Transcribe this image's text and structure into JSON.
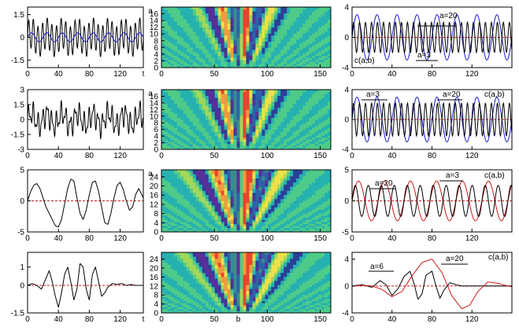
{
  "figure": {
    "row_count": 4,
    "col_count": 3
  },
  "chart_data": [
    {
      "row": 1,
      "column": 1,
      "type": "line",
      "xlabel": "t",
      "xlim": [
        0,
        150
      ],
      "ylim": [
        -2,
        2
      ],
      "xticks": [
        "0",
        "40",
        "80",
        "120"
      ],
      "yticks": [
        "1.5",
        "0",
        "-1.5"
      ],
      "ytick_values": [
        1.5,
        0,
        -1.5
      ],
      "zero_line": false,
      "series": [
        {
          "color": "#000000",
          "components": [
            {
              "amp": 0.3,
              "period": 20
            },
            {
              "amp": 1.0,
              "period": 6
            }
          ]
        },
        {
          "color": "#1a1acc",
          "components": [
            {
              "amp": 0.3,
              "period": 20
            }
          ]
        }
      ]
    },
    {
      "row": 1,
      "column": 2,
      "type": "heatmap",
      "ylabel": "a",
      "xlim": [
        0,
        160
      ],
      "ylim": [
        0,
        18
      ],
      "xticks": [
        "0",
        "50",
        "100",
        "150"
      ],
      "xtick_values": [
        0,
        50,
        100,
        150
      ],
      "yticks": [
        "0",
        "2",
        "4",
        "6",
        "8",
        "10",
        "12",
        "14",
        "16"
      ],
      "ytick_values": [
        0,
        2,
        4,
        6,
        8,
        10,
        12,
        14,
        16
      ],
      "pattern": "vertical bands with period 20 in b, strong narrow band at a=3 with short period",
      "colormap": [
        "#3a8c8c",
        "#2e62aa",
        "#5a2e9a",
        "#2c3f98",
        "#26b1b1",
        "#4ecb88",
        "#a2d85a",
        "#efe048",
        "#f19a3c",
        "#e8442e"
      ]
    },
    {
      "row": 1,
      "column": 3,
      "type": "line",
      "xlim": [
        0,
        160
      ],
      "ylim": [
        -4,
        4
      ],
      "xticks": [
        "0",
        "40",
        "80",
        "120"
      ],
      "yticks": [
        "4",
        "0",
        "-4"
      ],
      "ytick_values": [
        4,
        0,
        -4
      ],
      "zero_line": true,
      "series": [
        {
          "label": "a=20",
          "color": "#1a1acc",
          "components": [
            {
              "amp": 3.0,
              "period": 20
            }
          ]
        },
        {
          "label": "a=3",
          "color": "#000000",
          "components": [
            {
              "amp": 2.0,
              "period": 6
            }
          ]
        }
      ],
      "annotations": [
        "a=20",
        "a=3",
        "c(a,b)"
      ]
    },
    {
      "row": 2,
      "column": 1,
      "type": "line",
      "xlim": [
        0,
        150
      ],
      "ylim": [
        -3,
        3
      ],
      "xticks": [
        "0",
        "40",
        "80",
        "120"
      ],
      "yticks": [
        "3",
        "1.5",
        "0",
        "-1.5",
        "-3"
      ],
      "ytick_values": [
        3,
        1.5,
        0,
        -1.5,
        -3
      ],
      "zero_line": false,
      "series": [
        {
          "color": "#000000",
          "components": [
            {
              "amp": 0.6,
              "period": 20
            },
            {
              "amp": 0.9,
              "period": 6
            },
            {
              "amp": 0.5,
              "period": 3.3
            }
          ]
        }
      ]
    },
    {
      "row": 2,
      "column": 2,
      "type": "heatmap",
      "ylabel": "a",
      "xlim": [
        0,
        160
      ],
      "ylim": [
        0,
        18
      ],
      "xticks": [
        "0",
        "50",
        "100",
        "150"
      ],
      "xtick_values": [
        0,
        50,
        100,
        150
      ],
      "yticks": [
        "0",
        "2",
        "4",
        "6",
        "8",
        "10",
        "12",
        "14",
        "16"
      ],
      "ytick_values": [
        0,
        2,
        4,
        6,
        8,
        10,
        12,
        14,
        16
      ],
      "pattern": "vertical bands with period 20 in b plus noisy structure at small a",
      "colormap": [
        "#3a8c8c",
        "#2e62aa",
        "#5a2e9a",
        "#2c3f98",
        "#26b1b1",
        "#4ecb88",
        "#a2d85a",
        "#efe048",
        "#f19a3c",
        "#e8442e"
      ]
    },
    {
      "row": 2,
      "column": 3,
      "type": "line",
      "xlim": [
        0,
        160
      ],
      "ylim": [
        -4,
        4
      ],
      "xticks": [
        "0",
        "40",
        "80",
        "120"
      ],
      "yticks": [
        "4",
        "0",
        "-4"
      ],
      "ytick_values": [
        4,
        0,
        -4
      ],
      "zero_line": true,
      "series": [
        {
          "label": "a=20",
          "color": "#1a1acc",
          "components": [
            {
              "amp": 3.0,
              "period": 20
            }
          ]
        },
        {
          "label": "a=3",
          "color": "#000000",
          "components": [
            {
              "amp": 2.2,
              "period": 6
            }
          ]
        }
      ],
      "annotations": [
        "a=3",
        "a=20",
        "c(a,b)"
      ]
    },
    {
      "row": 3,
      "column": 1,
      "type": "line",
      "xlim": [
        0,
        150
      ],
      "ylim": [
        -5,
        5
      ],
      "xticks": [
        "0",
        "40",
        "80",
        "120"
      ],
      "yticks": [
        "5",
        "0",
        "-5"
      ],
      "ytick_values": [
        5,
        0,
        -5
      ],
      "zero_line": true,
      "series": [
        {
          "color": "#000000",
          "points": [
            [
              0,
              0
            ],
            [
              4,
              1.5
            ],
            [
              8,
              2.5
            ],
            [
              12,
              2.8
            ],
            [
              16,
              2.0
            ],
            [
              20,
              0.5
            ],
            [
              24,
              -1.0
            ],
            [
              28,
              -2.0
            ],
            [
              32,
              -3.0
            ],
            [
              36,
              -4.0
            ],
            [
              40,
              -4.2
            ],
            [
              44,
              -3.0
            ],
            [
              48,
              -0.5
            ],
            [
              52,
              2.0
            ],
            [
              56,
              3.5
            ],
            [
              60,
              3.2
            ],
            [
              64,
              0.5
            ],
            [
              68,
              -2.0
            ],
            [
              72,
              -3.0
            ],
            [
              76,
              -1.5
            ],
            [
              80,
              1.0
            ],
            [
              84,
              3.0
            ],
            [
              88,
              3.2
            ],
            [
              92,
              1.5
            ],
            [
              96,
              -1.0
            ],
            [
              100,
              -3.5
            ],
            [
              104,
              -3.8
            ],
            [
              108,
              -2.0
            ],
            [
              112,
              0.5
            ],
            [
              116,
              2.5
            ],
            [
              120,
              3.0
            ],
            [
              124,
              1.8
            ],
            [
              128,
              0
            ],
            [
              132,
              -1.5
            ],
            [
              136,
              -1.0
            ],
            [
              140,
              1.0
            ],
            [
              144,
              2.0
            ],
            [
              148,
              1.0
            ],
            [
              150,
              0.5
            ]
          ]
        }
      ]
    },
    {
      "row": 3,
      "column": 2,
      "type": "heatmap",
      "ylabel": "a",
      "xlim": [
        0,
        160
      ],
      "ylim": [
        0,
        27
      ],
      "xticks": [
        "0",
        "50",
        "100",
        "150"
      ],
      "xtick_values": [
        0,
        50,
        100,
        150
      ],
      "yticks": [
        "0",
        "4",
        "8",
        "12",
        "16",
        "20",
        "24"
      ],
      "ytick_values": [
        0,
        4,
        8,
        12,
        16,
        20,
        24
      ],
      "pattern": "oscillating blobs along b with period near 20, smaller scale structure near b=70-90",
      "colormap": [
        "#3a8c8c",
        "#2e62aa",
        "#5a2e9a",
        "#2c3f98",
        "#26b1b1",
        "#4ecb88",
        "#a2d85a",
        "#efe048",
        "#f19a3c",
        "#e8442e"
      ]
    },
    {
      "row": 3,
      "column": 3,
      "type": "line",
      "xlim": [
        0,
        160
      ],
      "ylim": [
        -5,
        5
      ],
      "xticks": [
        "0",
        "40",
        "80",
        "120"
      ],
      "yticks": [
        "5",
        "0",
        "-5"
      ],
      "ytick_values": [
        5,
        0,
        -5
      ],
      "zero_line": true,
      "series": [
        {
          "label": "a=20",
          "color": "#cc1a1a",
          "components": [
            {
              "amp": 3.2,
              "period": 26
            }
          ]
        },
        {
          "label": "a=3",
          "color": "#000000",
          "components": [
            {
              "amp": 2.5,
              "period": 13
            }
          ]
        }
      ],
      "annotations": [
        "a=20",
        "a=3",
        "c(a,b)"
      ]
    },
    {
      "row": 4,
      "column": 1,
      "type": "line",
      "xlabel": "t",
      "xlim": [
        0,
        150
      ],
      "ylim": [
        -1.5,
        1.8
      ],
      "xticks": [
        "0",
        "40",
        "80",
        "120"
      ],
      "yticks": [
        "1",
        "0",
        "-1.5"
      ],
      "ytick_values": [
        1,
        0,
        -1.5
      ],
      "zero_line": true,
      "series": [
        {
          "color": "#000000",
          "points": [
            [
              0,
              0
            ],
            [
              6,
              0.1
            ],
            [
              12,
              0
            ],
            [
              18,
              -0.2
            ],
            [
              24,
              0.4
            ],
            [
              28,
              0.8
            ],
            [
              32,
              0.2
            ],
            [
              36,
              -0.6
            ],
            [
              40,
              -1.2
            ],
            [
              44,
              -0.4
            ],
            [
              48,
              0.6
            ],
            [
              52,
              1.0
            ],
            [
              56,
              0.2
            ],
            [
              60,
              -0.8
            ],
            [
              64,
              -0.2
            ],
            [
              68,
              1.2
            ],
            [
              72,
              1.0
            ],
            [
              76,
              -0.2
            ],
            [
              80,
              -0.8
            ],
            [
              84,
              0.6
            ],
            [
              88,
              1.0
            ],
            [
              92,
              0.2
            ],
            [
              96,
              -0.6
            ],
            [
              100,
              -0.4
            ],
            [
              104,
              -0.1
            ],
            [
              110,
              0.1
            ],
            [
              116,
              0.05
            ],
            [
              122,
              0.1
            ],
            [
              128,
              0
            ],
            [
              134,
              0.05
            ],
            [
              140,
              0
            ],
            [
              150,
              0
            ]
          ]
        }
      ]
    },
    {
      "row": 4,
      "column": 2,
      "type": "heatmap",
      "xlabel": "b",
      "xlim": [
        0,
        160
      ],
      "ylim": [
        0,
        27
      ],
      "xticks": [
        "0",
        "50",
        "100",
        "150"
      ],
      "xtick_values": [
        0,
        50,
        100,
        150
      ],
      "yticks": [
        "0",
        "4",
        "8",
        "12",
        "16",
        "20",
        "24"
      ],
      "ytick_values": [
        0,
        4,
        8,
        12,
        16,
        20,
        24
      ],
      "pattern": "single localized packet centered near b=75 spreading with a",
      "colormap": [
        "#3a8c8c",
        "#2e62aa",
        "#5a2e9a",
        "#2c3f98",
        "#26b1b1",
        "#4ecb88",
        "#a2d85a",
        "#efe048",
        "#f19a3c",
        "#e8442e"
      ]
    },
    {
      "row": 4,
      "column": 3,
      "type": "line",
      "xlim": [
        0,
        160
      ],
      "ylim": [
        -4,
        5
      ],
      "xticks": [
        "0",
        "40",
        "80",
        "120"
      ],
      "yticks": [
        "4",
        "0",
        "-4"
      ],
      "ytick_values": [
        4,
        0,
        -4
      ],
      "zero_line": true,
      "series": [
        {
          "label": "a=6",
          "color": "#000000",
          "points": [
            [
              0,
              0
            ],
            [
              10,
              0.2
            ],
            [
              20,
              -0.2
            ],
            [
              28,
              0.8
            ],
            [
              34,
              0.2
            ],
            [
              40,
              -1.4
            ],
            [
              46,
              -0.4
            ],
            [
              52,
              1.4
            ],
            [
              58,
              2.2
            ],
            [
              62,
              0.4
            ],
            [
              66,
              -2.0
            ],
            [
              70,
              -1.2
            ],
            [
              74,
              1.6
            ],
            [
              80,
              2.2
            ],
            [
              84,
              0
            ],
            [
              88,
              -1.8
            ],
            [
              92,
              -0.6
            ],
            [
              98,
              0.5
            ],
            [
              104,
              0.2
            ],
            [
              110,
              0
            ],
            [
              130,
              0
            ],
            [
              160,
              0
            ]
          ]
        },
        {
          "label": "a=20",
          "color": "#cc1a1a",
          "points": [
            [
              0,
              0
            ],
            [
              10,
              0.1
            ],
            [
              20,
              0
            ],
            [
              30,
              -0.5
            ],
            [
              40,
              -1.6
            ],
            [
              50,
              -0.8
            ],
            [
              60,
              1.5
            ],
            [
              70,
              3.5
            ],
            [
              80,
              4.0
            ],
            [
              90,
              2.0
            ],
            [
              100,
              -1.5
            ],
            [
              110,
              -3.4
            ],
            [
              118,
              -2.8
            ],
            [
              126,
              -0.8
            ],
            [
              136,
              0.6
            ],
            [
              146,
              0.4
            ],
            [
              156,
              0
            ],
            [
              160,
              -0.1
            ]
          ]
        }
      ],
      "annotations": [
        "a=6",
        "a=20",
        "c(a,b)"
      ]
    }
  ]
}
